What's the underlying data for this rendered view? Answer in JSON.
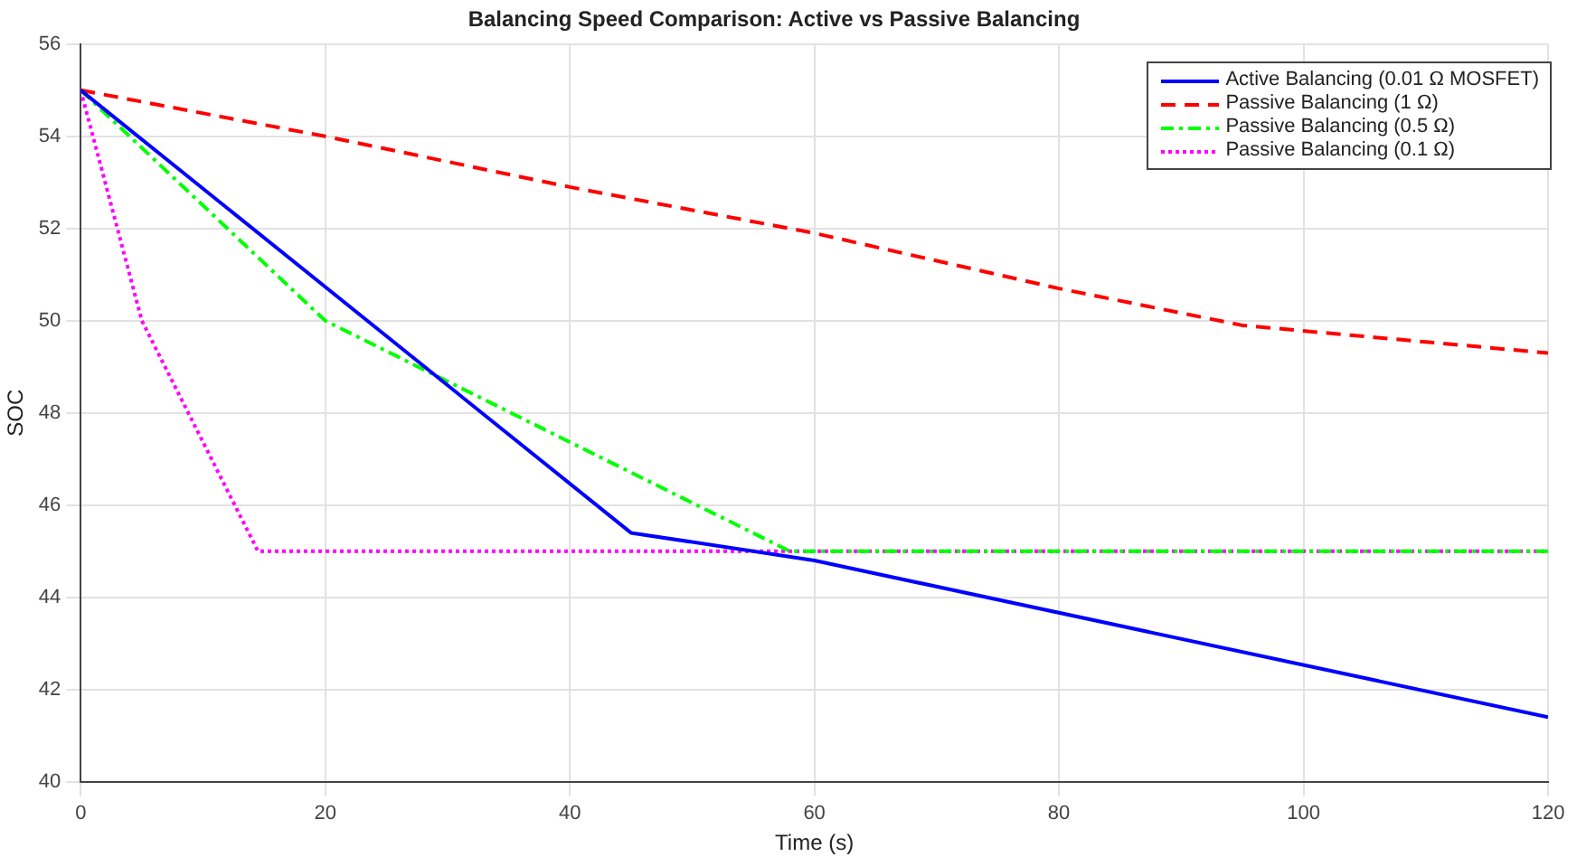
{
  "chart_data": {
    "type": "line",
    "title": "Balancing Speed Comparison: Active vs Passive Balancing",
    "xlabel": "Time (s)",
    "ylabel": "SOC",
    "xlim": [
      0,
      120
    ],
    "xticks": [
      0,
      20,
      40,
      60,
      80,
      100,
      120
    ],
    "ylim": [
      40,
      56
    ],
    "yticks": [
      40,
      42,
      44,
      46,
      48,
      50,
      52,
      54,
      56
    ],
    "grid": true,
    "legend": "top right",
    "marker": "none",
    "series": [
      {
        "name": "Active Balancing (0.01 Ω MOSFET)",
        "color": "#0000ff",
        "line_style": "solid",
        "x": [
          0,
          45,
          60,
          120
        ],
        "values": [
          55,
          45.4,
          44.8,
          41.4
        ]
      },
      {
        "name": "Passive Balancing (1 Ω)",
        "color": "#ff0000",
        "line_style": "dashed",
        "x": [
          0,
          20,
          40,
          60,
          80,
          95,
          120
        ],
        "values": [
          55,
          54,
          52.9,
          51.9,
          50.7,
          49.9,
          49.3
        ]
      },
      {
        "name": "Passive Balancing (0.5 Ω)",
        "color": "#00ff00",
        "line_style": "dashdot",
        "x": [
          0,
          20,
          58,
          120
        ],
        "values": [
          55,
          50,
          45,
          45
        ]
      },
      {
        "name": "Passive Balancing (0.1 Ω)",
        "color": "#ff00ff",
        "line_style": "dotted",
        "x": [
          0,
          5,
          14.5,
          120
        ],
        "values": [
          55,
          50,
          45,
          45
        ]
      }
    ]
  }
}
